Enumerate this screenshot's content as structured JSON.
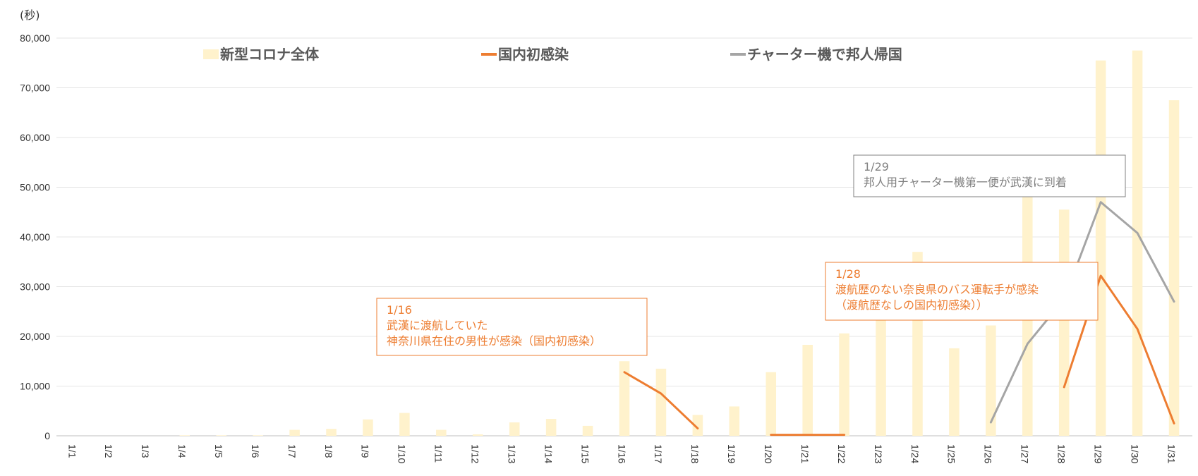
{
  "chart_data": {
    "type": "bar",
    "title": "",
    "xlabel": "",
    "ylabel": "(秒)",
    "ylim": [
      0,
      80000
    ],
    "yticks": [
      "0",
      "10,000",
      "20,000",
      "30,000",
      "40,000",
      "50,000",
      "60,000",
      "70,000",
      "80,000"
    ],
    "grid": true,
    "legend_position": "top",
    "categories": [
      "1/1",
      "1/2",
      "1/3",
      "1/4",
      "1/5",
      "1/6",
      "1/7",
      "1/8",
      "1/9",
      "1/10",
      "1/11",
      "1/12",
      "1/13",
      "1/14",
      "1/15",
      "1/16",
      "1/17",
      "1/18",
      "1/19",
      "1/20",
      "1/21",
      "1/22",
      "1/23",
      "1/24",
      "1/25",
      "1/26",
      "1/27",
      "1/28",
      "1/29",
      "1/30",
      "1/31"
    ],
    "series": [
      {
        "name": "新型コロナ全体",
        "kind": "bar",
        "color": "#FFF2CC",
        "values": [
          0,
          0,
          0,
          100,
          100,
          100,
          1200,
          1400,
          3300,
          4600,
          1200,
          300,
          2700,
          3400,
          2000,
          15000,
          13500,
          4200,
          5900,
          12800,
          18300,
          20600,
          26000,
          37000,
          17600,
          22200,
          48700,
          45500,
          75500,
          77500,
          67500
        ]
      },
      {
        "name": "国内初感染",
        "kind": "line",
        "color": "#ED7D31",
        "values": [
          null,
          null,
          null,
          null,
          null,
          null,
          null,
          null,
          null,
          null,
          null,
          null,
          null,
          null,
          null,
          12800,
          8500,
          1500,
          null,
          200,
          200,
          200,
          null,
          null,
          null,
          null,
          null,
          9800,
          32200,
          21500,
          2500
        ]
      },
      {
        "name": "チャーター機で邦人帰国",
        "kind": "line",
        "color": "#A5A5A5",
        "values": [
          null,
          null,
          null,
          null,
          null,
          null,
          null,
          null,
          null,
          null,
          null,
          null,
          null,
          null,
          null,
          null,
          null,
          null,
          null,
          null,
          null,
          null,
          null,
          null,
          null,
          2700,
          18500,
          27500,
          47000,
          40800,
          27000
        ]
      }
    ],
    "annotations": [
      {
        "category": "1/16",
        "color": "#ED7D31",
        "lines": [
          "1/16",
          "武漢に渡航していた",
          "神奈川県在住の男性が感染（国内初感染）"
        ]
      },
      {
        "category": "1/28",
        "color": "#ED7D31",
        "lines": [
          "1/28",
          "渡航歴のない奈良県のバス運転手が感染",
          "（渡航歴なしの国内初感染））"
        ]
      },
      {
        "category": "1/29",
        "color": "#808080",
        "lines": [
          "1/29",
          "邦人用チャーター機第一便が武漢に到着"
        ]
      }
    ]
  }
}
